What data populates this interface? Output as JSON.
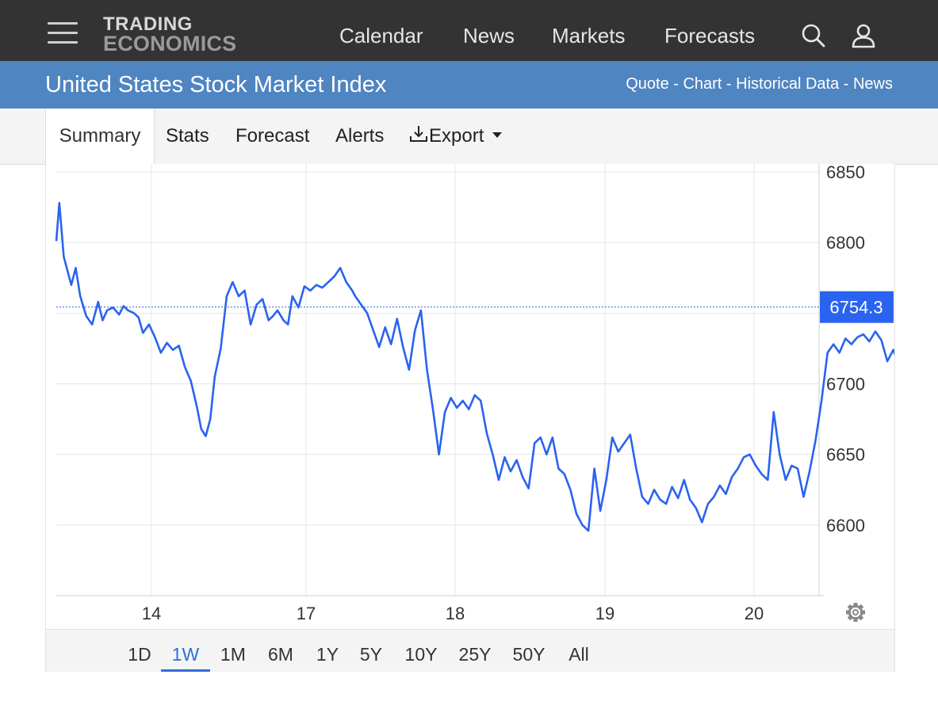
{
  "header": {
    "logo_line1": "TRADING",
    "logo_line2": "ECONOMICS",
    "nav": [
      "Calendar",
      "News",
      "Markets",
      "Forecasts"
    ],
    "icons": [
      "menu-icon",
      "search-icon",
      "user-icon"
    ]
  },
  "title_bar": {
    "title": "United States Stock Market Index",
    "links": [
      "Quote",
      "Chart",
      "Historical Data",
      "News"
    ],
    "separator": " - "
  },
  "tabs": {
    "items": [
      "Summary",
      "Stats",
      "Forecast",
      "Alerts"
    ],
    "export_label": "Export",
    "active": "Summary"
  },
  "ranges": {
    "items": [
      "1D",
      "1W",
      "1M",
      "6M",
      "1Y",
      "5Y",
      "10Y",
      "25Y",
      "50Y",
      "All"
    ],
    "active": "1W"
  },
  "colors": {
    "topbar": "#333333",
    "titlebar": "#4f85c1",
    "line": "#2a63f0",
    "active_range": "#2e6fd8"
  },
  "chart_data": {
    "type": "line",
    "title": "",
    "xlabel": "",
    "ylabel": "",
    "x_ticks": [
      "14",
      "17",
      "18",
      "19",
      "20"
    ],
    "y_ticks": [
      6600,
      6650,
      6700,
      6750,
      6800,
      6850
    ],
    "ylim": [
      6550,
      6850
    ],
    "last_value": "6754.3",
    "grid": true,
    "settings_icon": "gear-icon",
    "series": [
      {
        "x": [
          0.0,
          0.02,
          0.05,
          0.08,
          0.1,
          0.13,
          0.16,
          0.2,
          0.24,
          0.28,
          0.31,
          0.34,
          0.38,
          0.42,
          0.45,
          0.48,
          0.52,
          0.55,
          0.58,
          0.62,
          0.66,
          0.7,
          0.74,
          0.78,
          0.82,
          0.86,
          0.9,
          0.94,
          0.97,
          1.0,
          1.03,
          1.06,
          1.1,
          1.14,
          1.18,
          1.22,
          1.26,
          1.3,
          1.34,
          1.38,
          1.42,
          1.45,
          1.48,
          1.52,
          1.55,
          1.58,
          1.62,
          1.66,
          1.7,
          1.74,
          1.78,
          1.82,
          1.86,
          1.9,
          1.94,
          1.98,
          2.0,
          2.04,
          2.08,
          2.12,
          2.16,
          2.2,
          2.24,
          2.28,
          2.32,
          2.36,
          2.4,
          2.44,
          2.48,
          2.52,
          2.56,
          2.6,
          2.64,
          2.68,
          2.72,
          2.76,
          2.8,
          2.84,
          2.88,
          2.92,
          2.96,
          3.0,
          3.04,
          3.08,
          3.12,
          3.16,
          3.2,
          3.24,
          3.28,
          3.32,
          3.36,
          3.4,
          3.44,
          3.48,
          3.52,
          3.56,
          3.6,
          3.64,
          3.68,
          3.72,
          3.76,
          3.8,
          3.84,
          3.88,
          3.92,
          3.96,
          4.0,
          4.04,
          4.08,
          4.12,
          4.16,
          4.2,
          4.24,
          4.28,
          4.32,
          4.36,
          4.4,
          4.44,
          4.48,
          4.52,
          4.56,
          4.6,
          4.64,
          4.68,
          4.72,
          4.76,
          4.8,
          4.84,
          4.88,
          4.92,
          4.96,
          5.0,
          5.04,
          5.08,
          5.12,
          5.16,
          5.2,
          5.24,
          5.28,
          5.32,
          5.36,
          5.4,
          5.44,
          5.48,
          5.52,
          5.56,
          5.6,
          5.64,
          5.68,
          5.72,
          5.76,
          5.8,
          5.84,
          5.88,
          5.92,
          5.96,
          5.99
        ],
        "y": [
          6801,
          6828,
          6790,
          6778,
          6770,
          6782,
          6762,
          6748,
          6742,
          6758,
          6745,
          6752,
          6754,
          6749,
          6755,
          6752,
          6750,
          6747,
          6736,
          6742,
          6733,
          6722,
          6729,
          6724,
          6727,
          6712,
          6702,
          6684,
          6668,
          6663,
          6675,
          6705,
          6725,
          6762,
          6772,
          6762,
          6766,
          6742,
          6756,
          6760,
          6745,
          6748,
          6752,
          6745,
          6742,
          6762,
          6754,
          6769,
          6766,
          6770,
          6768,
          6772,
          6776,
          6782,
          6772,
          6766,
          6762,
          6756,
          6750,
          6738,
          6726,
          6740,
          6728,
          6746,
          6726,
          6710,
          6738,
          6752,
          6710,
          6682,
          6650,
          6680,
          6690,
          6683,
          6688,
          6682,
          6692,
          6688,
          6665,
          6650,
          6632,
          6648,
          6638,
          6646,
          6634,
          6626,
          6658,
          6662,
          6650,
          6662,
          6640,
          6636,
          6625,
          6608,
          6600,
          6596,
          6640,
          6610,
          6632,
          6662,
          6652,
          6658,
          6664,
          6640,
          6620,
          6615,
          6625,
          6618,
          6615,
          6627,
          6619,
          6632,
          6618,
          6612,
          6602,
          6615,
          6620,
          6628,
          6622,
          6634,
          6640,
          6648,
          6650,
          6642,
          6636,
          6632,
          6680,
          6650,
          6632,
          6642,
          6640,
          6620,
          6638,
          6660,
          6688,
          6722,
          6728,
          6722,
          6732,
          6728,
          6733,
          6735,
          6730,
          6737,
          6731,
          6716,
          6724,
          6713,
          6720,
          6718,
          6728,
          6732,
          6730,
          6742,
          6744,
          6752,
          6754
        ]
      }
    ]
  }
}
